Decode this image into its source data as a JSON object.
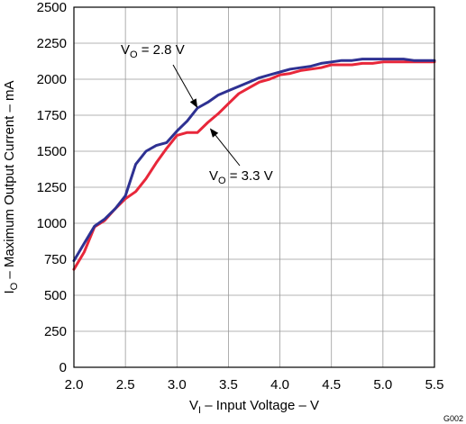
{
  "chart_data": {
    "type": "line",
    "xlabel": "V_I – Input Voltage – V",
    "ylabel": "I_O – Maximum Output Current – mA",
    "xlim": [
      2.0,
      5.5
    ],
    "ylim": [
      0,
      2500
    ],
    "xticks": [
      2.0,
      2.5,
      3.0,
      3.5,
      4.0,
      4.5,
      5.0,
      5.5
    ],
    "yticks": [
      0,
      250,
      500,
      750,
      1000,
      1250,
      1500,
      1750,
      2000,
      2250,
      2500
    ],
    "xtick_labels": [
      "2.0",
      "2.5",
      "3.0",
      "3.5",
      "4.0",
      "4.5",
      "5.0",
      "5.5"
    ],
    "ytick_labels": [
      "0",
      "250",
      "500",
      "750",
      "1000",
      "1250",
      "1500",
      "1750",
      "2000",
      "2250",
      "2500"
    ],
    "grid": true,
    "figure_id": "G002",
    "series": [
      {
        "name": "V_O = 2.8 V",
        "color": "#2e3192",
        "x": [
          2.0,
          2.1,
          2.2,
          2.3,
          2.4,
          2.5,
          2.6,
          2.7,
          2.8,
          2.9,
          3.0,
          3.1,
          3.2,
          3.3,
          3.4,
          3.5,
          3.6,
          3.7,
          3.8,
          3.9,
          4.0,
          4.1,
          4.2,
          4.3,
          4.4,
          4.5,
          4.6,
          4.7,
          4.8,
          4.9,
          5.0,
          5.1,
          5.2,
          5.3,
          5.4,
          5.5
        ],
        "y": [
          740,
          860,
          980,
          1030,
          1100,
          1190,
          1410,
          1500,
          1540,
          1560,
          1640,
          1710,
          1800,
          1840,
          1890,
          1920,
          1950,
          1980,
          2010,
          2030,
          2050,
          2070,
          2080,
          2090,
          2110,
          2120,
          2130,
          2130,
          2140,
          2140,
          2140,
          2140,
          2140,
          2130,
          2130,
          2130
        ]
      },
      {
        "name": "V_O = 3.3 V",
        "color": "#e8273a",
        "x": [
          2.0,
          2.1,
          2.2,
          2.3,
          2.4,
          2.5,
          2.6,
          2.7,
          2.8,
          2.9,
          3.0,
          3.1,
          3.2,
          3.3,
          3.4,
          3.5,
          3.6,
          3.7,
          3.8,
          3.9,
          4.0,
          4.1,
          4.2,
          4.3,
          4.4,
          4.5,
          4.6,
          4.7,
          4.8,
          4.9,
          5.0,
          5.1,
          5.2,
          5.3,
          5.4,
          5.5
        ],
        "y": [
          680,
          800,
          975,
          1020,
          1100,
          1170,
          1220,
          1310,
          1420,
          1520,
          1610,
          1630,
          1630,
          1700,
          1760,
          1830,
          1900,
          1940,
          1980,
          2000,
          2030,
          2040,
          2060,
          2070,
          2080,
          2100,
          2100,
          2100,
          2110,
          2110,
          2120,
          2120,
          2120,
          2120,
          2120,
          2120
        ]
      }
    ],
    "annotations": [
      {
        "series": "V_O = 2.8 V",
        "label_main": "V",
        "label_sub": "O",
        "label_rest": " = 2.8 V",
        "arrow_to": [
          3.2,
          1800
        ]
      },
      {
        "series": "V_O = 3.3 V",
        "label_main": "V",
        "label_sub": "O",
        "label_rest": " = 3.3 V",
        "arrow_to": [
          3.32,
          1660
        ]
      }
    ],
    "xlabel_parts": {
      "main": "V",
      "sub": "I",
      "rest": " – Input Voltage – V"
    },
    "ylabel_parts": {
      "main": "I",
      "sub": "O",
      "rest": " – Maximum Output Current – mA"
    }
  }
}
